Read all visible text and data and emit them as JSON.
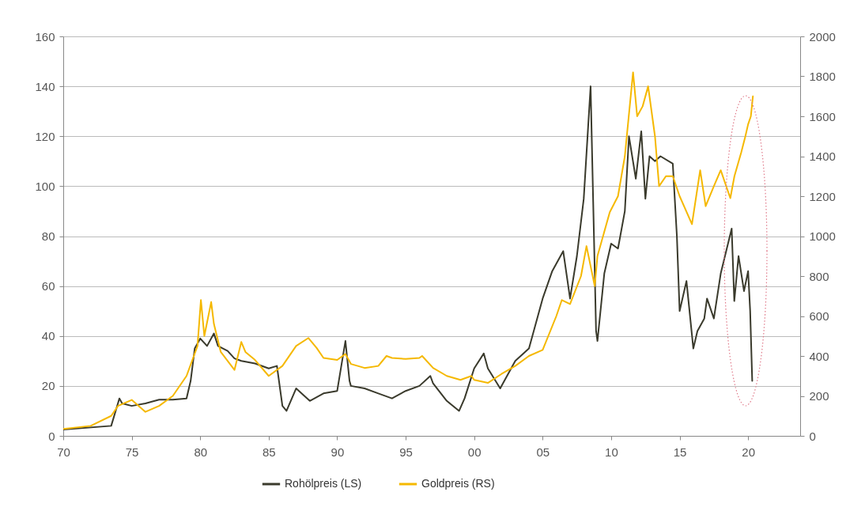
{
  "chart_data": {
    "type": "line",
    "xlim": [
      1970,
      2023.8
    ],
    "xticks": [
      {
        "value": 1970,
        "label": "70"
      },
      {
        "value": 1975,
        "label": "75"
      },
      {
        "value": 1980,
        "label": "80"
      },
      {
        "value": 1985,
        "label": "85"
      },
      {
        "value": 1990,
        "label": "90"
      },
      {
        "value": 1995,
        "label": "95"
      },
      {
        "value": 2000,
        "label": "00"
      },
      {
        "value": 2005,
        "label": "05"
      },
      {
        "value": 2010,
        "label": "10"
      },
      {
        "value": 2015,
        "label": "15"
      },
      {
        "value": 2020,
        "label": "20"
      }
    ],
    "ylim": [
      0,
      160
    ],
    "yticks": [
      0,
      20,
      40,
      60,
      80,
      100,
      120,
      140,
      160
    ],
    "y2lim": [
      0,
      2000
    ],
    "y2ticks": [
      0,
      200,
      400,
      600,
      800,
      1000,
      1200,
      1400,
      1600,
      1800,
      2000
    ],
    "grid": "y",
    "legend": "bottom",
    "series": [
      {
        "name": "Rohölpreis (LS)",
        "color": "#3a3a2c",
        "x": [
          1970,
          1973.5,
          1974.1,
          1974.3,
          1975,
          1976,
          1977,
          1978,
          1979,
          1979.3,
          1979.6,
          1980,
          1980.5,
          1981,
          1981.3,
          1982,
          1982.5,
          1983,
          1984,
          1985,
          1985.6,
          1986,
          1986.3,
          1987,
          1988,
          1989,
          1990,
          1990.6,
          1990.9,
          1991,
          1992,
          1993,
          1994,
          1995,
          1996,
          1996.8,
          1997,
          1998,
          1998.9,
          1999.3,
          2000,
          2000.7,
          2001,
          2001.9,
          2003,
          2004,
          2005,
          2005.7,
          2006.5,
          2007,
          2007.5,
          2008,
          2008.5,
          2008.9,
          2009,
          2009.5,
          2010,
          2010.5,
          2011,
          2011.3,
          2011.8,
          2012.2,
          2012.5,
          2012.8,
          2013.2,
          2013.6,
          2014.5,
          2014.8,
          2015,
          2015.5,
          2016,
          2016.3,
          2016.8,
          2017,
          2017.5,
          2018,
          2018.8,
          2018.99,
          2019.3,
          2019.7,
          2020,
          2020.15,
          2020.3
        ],
        "values": [
          2.5,
          4,
          15,
          13,
          12,
          13,
          14.5,
          14.5,
          15,
          22,
          35,
          39,
          36,
          41,
          36,
          34,
          31,
          30,
          29,
          27,
          28,
          12,
          10,
          19,
          14,
          17,
          18,
          38,
          22,
          20,
          19,
          17,
          15,
          18,
          20,
          24,
          21,
          14,
          10,
          15,
          27,
          33,
          27,
          19,
          30,
          35,
          55,
          66,
          74,
          55,
          72,
          95,
          140,
          42,
          38,
          65,
          77,
          75,
          90,
          120,
          103,
          122,
          95,
          112,
          110,
          112,
          109,
          80,
          50,
          62,
          35,
          42,
          47,
          55,
          47,
          65,
          83,
          54,
          72,
          58,
          66,
          50,
          22
        ]
      },
      {
        "name": "Goldpreis (RS)",
        "color": "#f5b800",
        "axis": "y2",
        "x": [
          1970,
          1972,
          1973.5,
          1974,
          1975,
          1976,
          1977,
          1978,
          1979,
          1979.8,
          1980.05,
          1980.3,
          1980.8,
          1981,
          1981.5,
          1982.5,
          1983,
          1983.3,
          1984,
          1985,
          1986,
          1987,
          1987.9,
          1988.5,
          1989,
          1990,
          1990.6,
          1991,
          1992,
          1993,
          1993.6,
          1994,
          1995,
          1996,
          1996.2,
          1997,
          1998,
          1999,
          1999.8,
          2000,
          2001,
          2002,
          2003,
          2004,
          2005,
          2006,
          2006.4,
          2007,
          2007.8,
          2008.2,
          2008.8,
          2009,
          2009.9,
          2010.5,
          2011,
          2011.6,
          2011.9,
          2012.3,
          2012.7,
          2013.2,
          2013.5,
          2014,
          2014.5,
          2015,
          2015.9,
          2016.5,
          2016.9,
          2017.5,
          2018,
          2018.7,
          2019,
          2019.5,
          2019.8,
          2020,
          2020.2,
          2020.35
        ],
        "values": [
          35,
          50,
          100,
          150,
          180,
          120,
          150,
          200,
          300,
          450,
          680,
          500,
          670,
          560,
          420,
          330,
          470,
          420,
          380,
          300,
          350,
          450,
          490,
          440,
          390,
          380,
          410,
          360,
          340,
          350,
          400,
          390,
          385,
          390,
          400,
          340,
          300,
          280,
          300,
          280,
          265,
          310,
          350,
          400,
          430,
          600,
          680,
          660,
          800,
          950,
          750,
          900,
          1120,
          1200,
          1400,
          1820,
          1600,
          1650,
          1750,
          1500,
          1250,
          1300,
          1300,
          1200,
          1060,
          1330,
          1150,
          1250,
          1330,
          1190,
          1300,
          1420,
          1500,
          1560,
          1600,
          1700
        ]
      }
    ]
  }
}
